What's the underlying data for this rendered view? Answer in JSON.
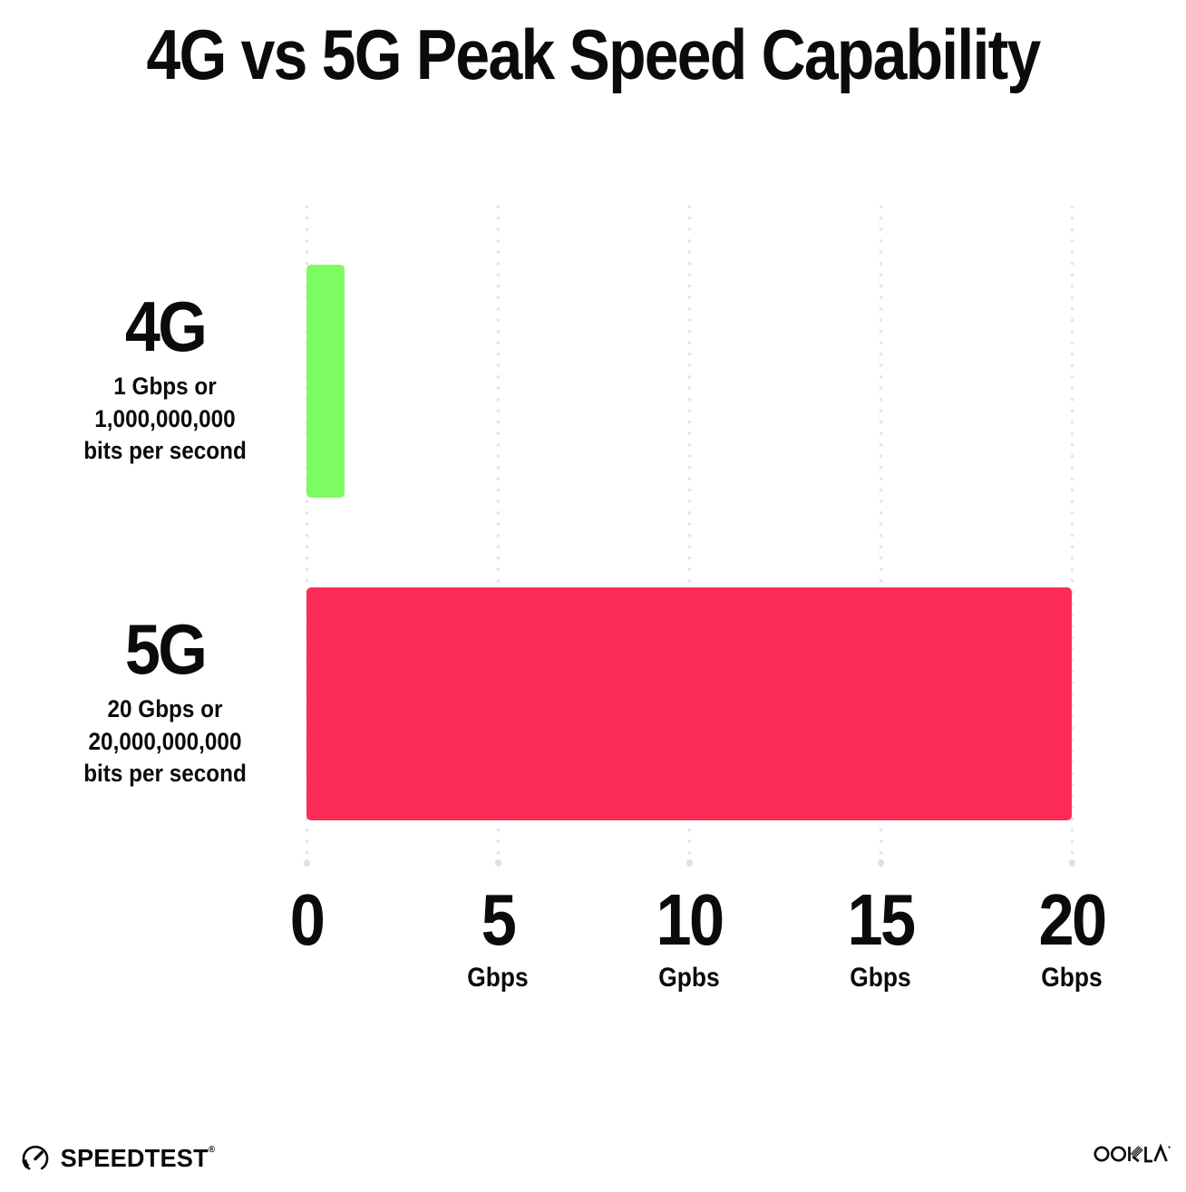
{
  "title": "4G vs 5G Peak Speed Capability",
  "chart_data": {
    "type": "bar",
    "orientation": "horizontal",
    "title": "4G vs 5G Peak Speed Capability",
    "categories": [
      "4G",
      "5G"
    ],
    "values": [
      1,
      20
    ],
    "value_unit": "Gbps",
    "bar_colors": [
      "#7dfb63",
      "#fd2c57"
    ],
    "bar_sublabels": [
      [
        "1 Gbps or",
        "1,000,000,000",
        "bits per second"
      ],
      [
        "20 Gbps or",
        "20,000,000,000",
        "bits per second"
      ]
    ],
    "xlim": [
      0,
      20
    ],
    "x_ticks": [
      {
        "value": 0,
        "label": "0",
        "unit": ""
      },
      {
        "value": 5,
        "label": "5",
        "unit": "Gbps"
      },
      {
        "value": 10,
        "label": "10",
        "unit": "Gpbs"
      },
      {
        "value": 15,
        "label": "15",
        "unit": "Gbps"
      },
      {
        "value": 20,
        "label": "20",
        "unit": "Gbps"
      }
    ],
    "grid": "dotted-vertical",
    "grid_color": "#e4e4f0",
    "legend": "none"
  },
  "footer": {
    "speedtest_label": "SPEEDTEST",
    "speedtest_trademark": "®",
    "ookla_label": "OOKLA",
    "ookla_trademark": "®"
  },
  "colors": {
    "bar_4g": "#7dfb63",
    "bar_5g": "#fd2c57",
    "text": "#0b0b0b",
    "background": "#ffffff"
  }
}
